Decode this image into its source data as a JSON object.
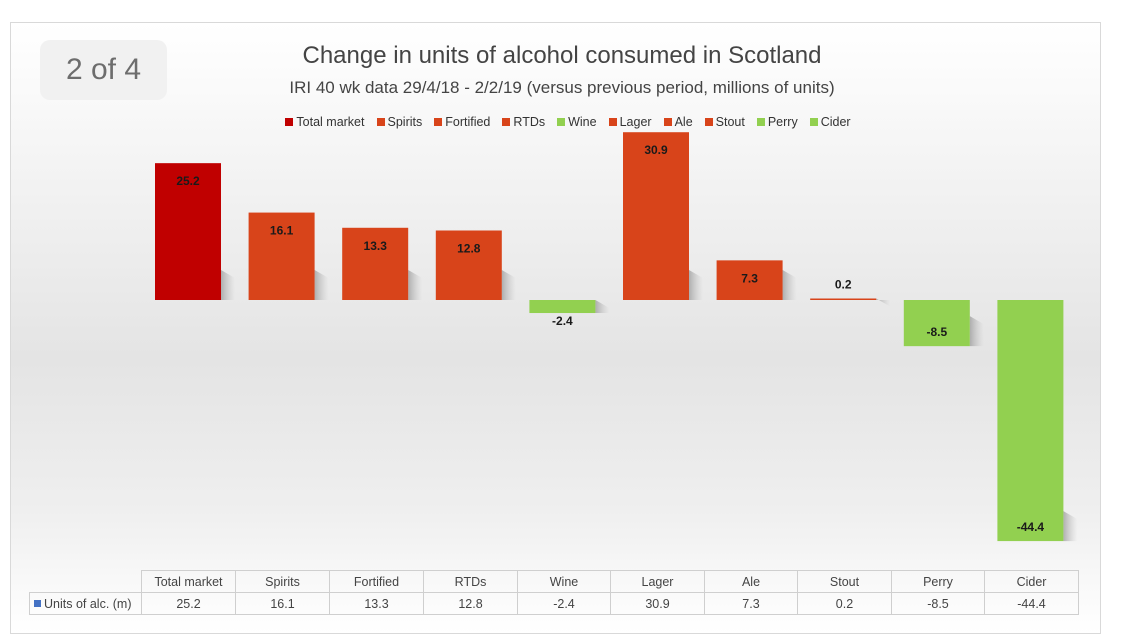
{
  "page_indicator": "2 of 4",
  "chart_data": {
    "type": "bar",
    "title": "Change in units of alcohol consumed in Scotland",
    "subtitle": "IRI 40 wk data 29/4/18 - 2/2/19 (versus previous period, millions of units)",
    "categories": [
      "Total market",
      "Spirits",
      "Fortified",
      "RTDs",
      "Wine",
      "Lager",
      "Ale",
      "Stout",
      "Perry",
      "Cider"
    ],
    "series": [
      {
        "name": "Units of alc. (m)",
        "values": [
          25.2,
          16.1,
          13.3,
          12.8,
          -2.4,
          30.9,
          7.3,
          0.2,
          -8.5,
          -44.4
        ]
      }
    ],
    "data_labels": [
      "25.2",
      "16.1",
      "13.3",
      "12.8",
      "-2.4",
      "30.9",
      "7.3",
      "0.2",
      "-8.5",
      "-44.4"
    ],
    "bar_colors": [
      "#c00000",
      "#d8441a",
      "#d8441a",
      "#d8441a",
      "#92d050",
      "#d8441a",
      "#d8441a",
      "#d8441a",
      "#92d050",
      "#92d050"
    ],
    "legend_position": "top",
    "grid": false,
    "data_table": true,
    "ylim": [
      -44.4,
      30.9
    ]
  },
  "legend": [
    {
      "label": "Total market",
      "color": "#c00000"
    },
    {
      "label": "Spirits",
      "color": "#d8441a"
    },
    {
      "label": "Fortified",
      "color": "#d8441a"
    },
    {
      "label": "RTDs",
      "color": "#d8441a"
    },
    {
      "label": "Wine",
      "color": "#92d050"
    },
    {
      "label": "Lager",
      "color": "#d8441a"
    },
    {
      "label": "Ale",
      "color": "#d8441a"
    },
    {
      "label": "Stout",
      "color": "#d8441a"
    },
    {
      "label": "Perry",
      "color": "#92d050"
    },
    {
      "label": "Cider",
      "color": "#92d050"
    }
  ],
  "table": {
    "row_label": "Units of alc. (m)",
    "row_marker_color": "#4472c4",
    "headers": [
      "Total market",
      "Spirits",
      "Fortified",
      "RTDs",
      "Wine",
      "Lager",
      "Ale",
      "Stout",
      "Perry",
      "Cider"
    ],
    "values": [
      "25.2",
      "16.1",
      "13.3",
      "12.8",
      "-2.4",
      "30.9",
      "7.3",
      "0.2",
      "-8.5",
      "-44.4"
    ]
  }
}
